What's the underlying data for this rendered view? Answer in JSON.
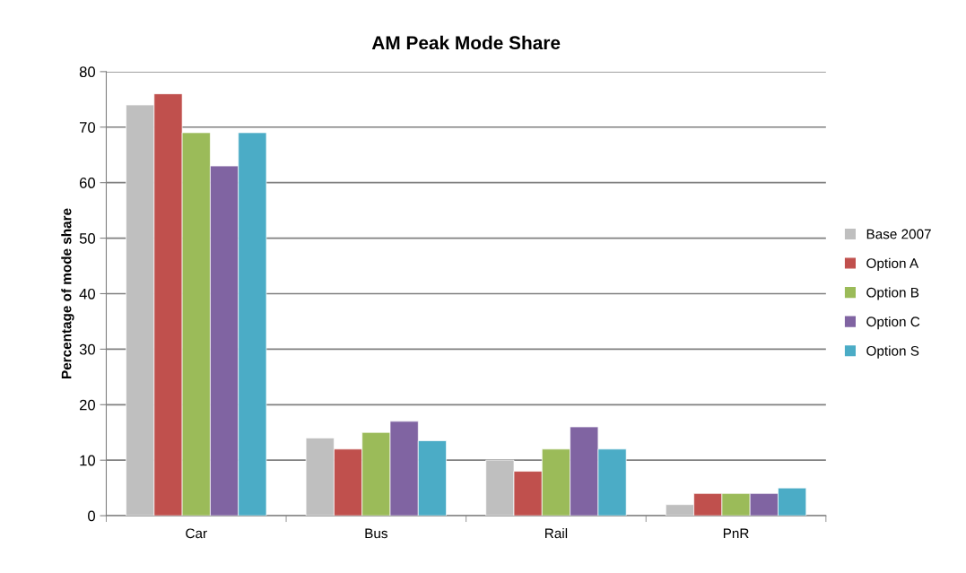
{
  "chart_data": {
    "type": "bar",
    "title": "AM Peak Mode Share",
    "ylabel": "Percentage of mode share",
    "categories": [
      "Car",
      "Bus",
      "Rail",
      "PnR"
    ],
    "series": [
      {
        "name": "Base 2007",
        "color": "#bfbfbf",
        "values": [
          74,
          14,
          10,
          2
        ]
      },
      {
        "name": "Option A",
        "color": "#c0504d",
        "values": [
          76,
          12,
          8,
          4
        ]
      },
      {
        "name": "Option B",
        "color": "#9bbb59",
        "values": [
          69,
          15,
          12,
          4
        ]
      },
      {
        "name": "Option C",
        "color": "#8064a2",
        "values": [
          63,
          17,
          16,
          4
        ]
      },
      {
        "name": "Option S",
        "color": "#4bacc6",
        "values": [
          69,
          13.5,
          12,
          5
        ]
      }
    ],
    "ylim": [
      0,
      80
    ],
    "yticks": [
      0,
      10,
      20,
      30,
      40,
      50,
      60,
      70,
      80
    ],
    "grid": "y",
    "legend": "right"
  }
}
